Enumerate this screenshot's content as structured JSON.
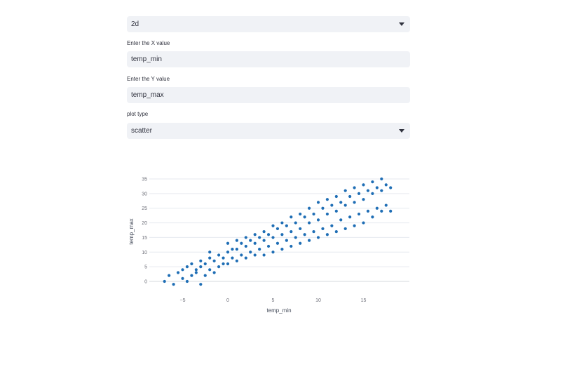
{
  "dimension_select": {
    "value": "2d"
  },
  "x_input": {
    "label": "Enter the X value",
    "value": "temp_min"
  },
  "y_input": {
    "label": "Enter the Y value",
    "value": "temp_max"
  },
  "plot_type_select": {
    "label": "plot type",
    "value": "scatter"
  },
  "icons": {
    "select_caret": "chevron-down-icon"
  },
  "colors": {
    "marker": "#1f6eb5",
    "input_bg": "#f0f2f6",
    "grid": "#e6e9ef"
  },
  "chart_data": {
    "type": "scatter",
    "xlabel": "temp_min",
    "ylabel": "temp_max",
    "xlim": [
      -8,
      20
    ],
    "ylim": [
      -3,
      37
    ],
    "x_ticks": [
      -5,
      0,
      5,
      10,
      15
    ],
    "x_tick_labels": [
      "−5",
      "0",
      "5",
      "10",
      "15"
    ],
    "y_ticks": [
      0,
      5,
      10,
      15,
      20,
      25,
      30,
      35
    ],
    "y_tick_labels": [
      "0",
      "5",
      "10",
      "15",
      "20",
      "25",
      "30",
      "35"
    ],
    "grid": "horizontal",
    "legend": "none",
    "x": [
      -7,
      -6.5,
      -6,
      -5.5,
      -5,
      -5,
      -4.5,
      -4.5,
      -4,
      -4,
      -3.5,
      -3.5,
      -3,
      -3,
      -3,
      -2.5,
      -2.5,
      -2,
      -2,
      -2,
      -1.5,
      -1.5,
      -1,
      -1,
      -0.5,
      -0.5,
      0,
      0,
      0,
      0.5,
      0.5,
      1,
      1,
      1,
      1.5,
      1.5,
      2,
      2,
      2,
      2.5,
      2.5,
      3,
      3,
      3,
      3.5,
      3.5,
      4,
      4,
      4,
      4.5,
      4.5,
      5,
      5,
      5,
      5.5,
      5.5,
      6,
      6,
      6,
      6.5,
      6.5,
      7,
      7,
      7,
      7.5,
      7.5,
      8,
      8,
      8,
      8.5,
      8.5,
      9,
      9,
      9,
      9.5,
      9.5,
      10,
      10,
      10,
      10.5,
      10.5,
      11,
      11,
      11,
      11.5,
      11.5,
      12,
      12,
      12,
      12.5,
      12.5,
      13,
      13,
      13,
      13.5,
      13.5,
      14,
      14,
      14,
      14.5,
      14.5,
      15,
      15,
      15,
      15.5,
      15.5,
      16,
      16,
      16,
      16.5,
      16.5,
      17,
      17,
      17,
      17.5,
      17.5,
      18,
      18
    ],
    "y": [
      0,
      2,
      -1,
      3,
      1,
      4,
      0,
      5,
      2,
      6,
      3,
      4,
      -1,
      5,
      7,
      2,
      6,
      4,
      8,
      10,
      3,
      7,
      5,
      9,
      6,
      8,
      6,
      10,
      13,
      8,
      11,
      7,
      11,
      14,
      9,
      13,
      8,
      12,
      15,
      10,
      14,
      9,
      13,
      16,
      11,
      15,
      9,
      14,
      17,
      12,
      16,
      10,
      15,
      19,
      13,
      18,
      11,
      16,
      20,
      14,
      19,
      12,
      17,
      22,
      15,
      20,
      13,
      18,
      23,
      16,
      22,
      14,
      20,
      25,
      17,
      23,
      15,
      21,
      27,
      18,
      25,
      16,
      23,
      28,
      19,
      26,
      17,
      24,
      29,
      21,
      27,
      18,
      26,
      31,
      22,
      29,
      19,
      27,
      32,
      23,
      30,
      20,
      28,
      33,
      24,
      31,
      22,
      30,
      34,
      25,
      32,
      24,
      31,
      35,
      26,
      33,
      24,
      32
    ]
  }
}
